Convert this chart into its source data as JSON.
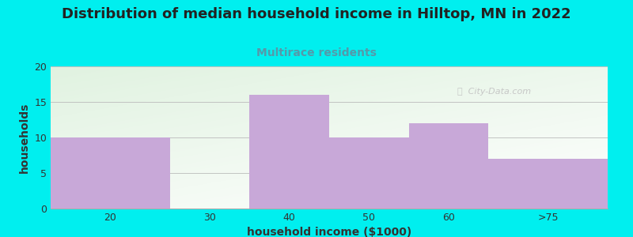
{
  "title": "Distribution of median household income in Hilltop, MN in 2022",
  "subtitle": "Multirace residents",
  "xlabel": "household income ($1000)",
  "ylabel": "households",
  "bin_edges": [
    10,
    25,
    35,
    45,
    55,
    65,
    80
  ],
  "tick_positions": [
    17.5,
    30,
    40,
    50,
    60,
    72.5
  ],
  "tick_labels": [
    "20",
    "30",
    "40",
    "50",
    "60",
    ">75"
  ],
  "values": [
    10,
    0,
    16,
    10,
    12,
    7
  ],
  "bar_color": "#c8a8d8",
  "background_color": "#00efef",
  "plot_bg_left_color": "#e0f0d8",
  "plot_bg_right_color": "#f8f8ff",
  "ylim": [
    0,
    20
  ],
  "yticks": [
    0,
    5,
    10,
    15,
    20
  ],
  "title_fontsize": 13,
  "subtitle_fontsize": 10,
  "subtitle_color": "#5599aa",
  "axis_label_fontsize": 10,
  "tick_fontsize": 9,
  "watermark": "ⓘ  City-Data.com",
  "title_color": "#222222",
  "ylabel_color": "#333333",
  "xlabel_color": "#333333"
}
